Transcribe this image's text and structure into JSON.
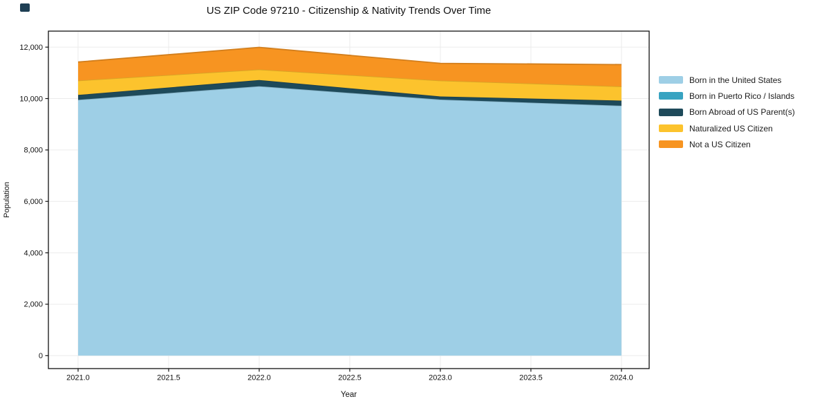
{
  "figure": {
    "background": "#ffffff",
    "corner_mark_color": "#1e3f54"
  },
  "chart_data": {
    "type": "area",
    "stacked": true,
    "title": "US ZIP Code 97210 - Citizenship & Nativity Trends Over Time",
    "xlabel": "Year",
    "ylabel": "Population",
    "x": [
      2021,
      2022,
      2023,
      2024
    ],
    "series": [
      {
        "name": "Born in the United States",
        "color": "#9ecfe6",
        "values": [
          9950,
          10480,
          9960,
          9720
        ]
      },
      {
        "name": "Born in Puerto Rico / Islands",
        "color": "#38a3c1",
        "values": [
          0,
          0,
          0,
          0
        ]
      },
      {
        "name": "Born Abroad of US Parent(s)",
        "color": "#1e4a5a",
        "values": [
          190,
          240,
          120,
          200
        ]
      },
      {
        "name": "Naturalized US Citizen",
        "color": "#fcc32d",
        "values": [
          560,
          410,
          620,
          550
        ]
      },
      {
        "name": "Not a US Citizen",
        "color": "#f79421",
        "values": [
          720,
          860,
          670,
          850
        ]
      }
    ],
    "totals": [
      11420,
      11990,
      11370,
      11320
    ],
    "x_ticks": [
      2021.0,
      2021.5,
      2022.0,
      2022.5,
      2023.0,
      2023.5,
      2024.0
    ],
    "x_tick_labels": [
      "2021.0",
      "2021.5",
      "2022.0",
      "2022.5",
      "2023.0",
      "2023.5",
      "2024.0"
    ],
    "y_ticks": [
      0,
      2000,
      4000,
      6000,
      8000,
      10000,
      12000
    ],
    "y_tick_labels": [
      "0",
      "2,000",
      "4,000",
      "6,000",
      "8,000",
      "10,000",
      "12,000"
    ],
    "xlim": [
      2020.836,
      2024.153
    ],
    "ylim": [
      -503,
      12623
    ],
    "grid": true,
    "grid_color": "#ebebeb",
    "spine_color": "#111111",
    "legend_position": "right"
  }
}
